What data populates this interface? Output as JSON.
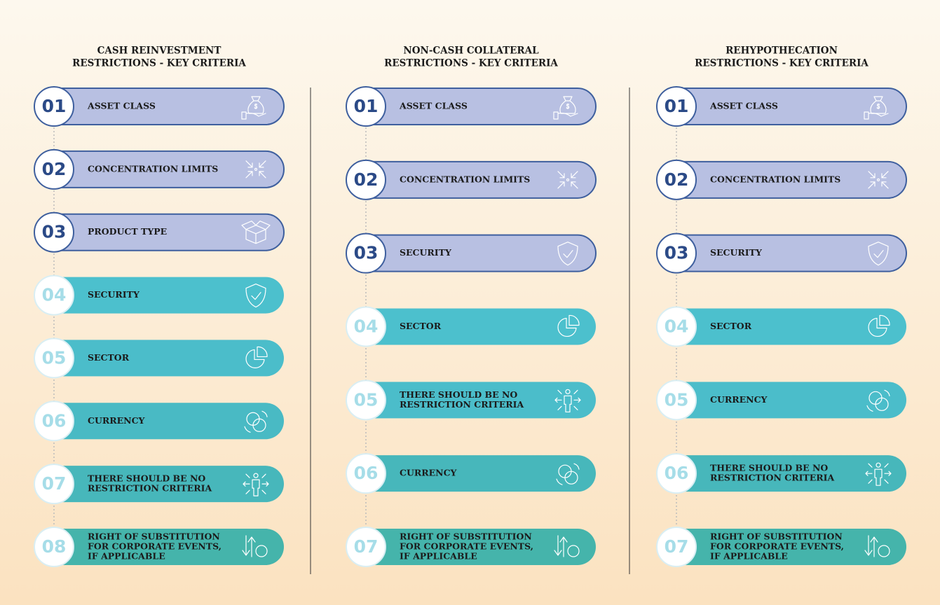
{
  "columns": [
    {
      "title": [
        "CASH REINVESTMENT",
        "RESTRICTIONS - KEY CRITERIA"
      ],
      "items": [
        {
          "number": "01",
          "label": [
            "ASSET CLASS"
          ]
        },
        {
          "number": "02",
          "label": [
            "CONCENTRATION LIMITS"
          ]
        },
        {
          "number": "03",
          "label": [
            "PRODUCT TYPE"
          ]
        },
        {
          "number": "04",
          "label": [
            "SECURITY"
          ]
        },
        {
          "number": "05",
          "label": [
            "SECTOR"
          ]
        },
        {
          "number": "06",
          "label": [
            "CURRENCY"
          ]
        },
        {
          "number": "07",
          "label": [
            "THERE SHOULD BE NO",
            "RESTRICTION CRITERIA"
          ]
        },
        {
          "number": "08",
          "label": [
            "RIGHT OF SUBSTITUTION",
            "FOR CORPORATE EVENTS,",
            "IF APPLICABLE"
          ]
        }
      ]
    },
    {
      "title": [
        "NON-CASH COLLATERAL",
        "RESTRICTIONS - KEY CRITERIA"
      ],
      "items": [
        {
          "number": "01",
          "label": [
            "ASSET CLASS"
          ]
        },
        {
          "number": "02",
          "label": [
            "CONCENTRATION LIMITS"
          ]
        },
        {
          "number": "03",
          "label": [
            "SECURITY"
          ]
        },
        {
          "number": "04",
          "label": [
            "SECTOR"
          ]
        },
        {
          "number": "05",
          "label": [
            "THERE SHOULD BE NO",
            "RESTRICTION CRITERIA"
          ]
        },
        {
          "number": "06",
          "label": [
            "CURRENCY"
          ]
        },
        {
          "number": "07",
          "label": [
            "RIGHT OF SUBSTITUTION",
            "FOR CORPORATE EVENTS,",
            "IF APPLICABLE"
          ]
        }
      ]
    },
    {
      "title": [
        "REHYPOTHECATION",
        "RESTRICTIONS - KEY CRITERIA"
      ],
      "items": [
        {
          "number": "01",
          "label": [
            "ASSET CLASS"
          ]
        },
        {
          "number": "02",
          "label": [
            "CONCENTRATION LIMITS"
          ]
        },
        {
          "number": "03",
          "label": [
            "SECURITY"
          ]
        },
        {
          "number": "04",
          "label": [
            "SECTOR"
          ]
        },
        {
          "number": "05",
          "label": [
            "CURRENCY"
          ]
        },
        {
          "number": "06",
          "label": [
            "THERE SHOULD BE NO",
            "RESTRICTION CRITERIA"
          ]
        },
        {
          "number": "07",
          "label": [
            "RIGHT OF SUBSTITUTION",
            "FOR CORPORATE EVENTS,",
            "IF APPLICABLE"
          ]
        }
      ]
    }
  ]
}
